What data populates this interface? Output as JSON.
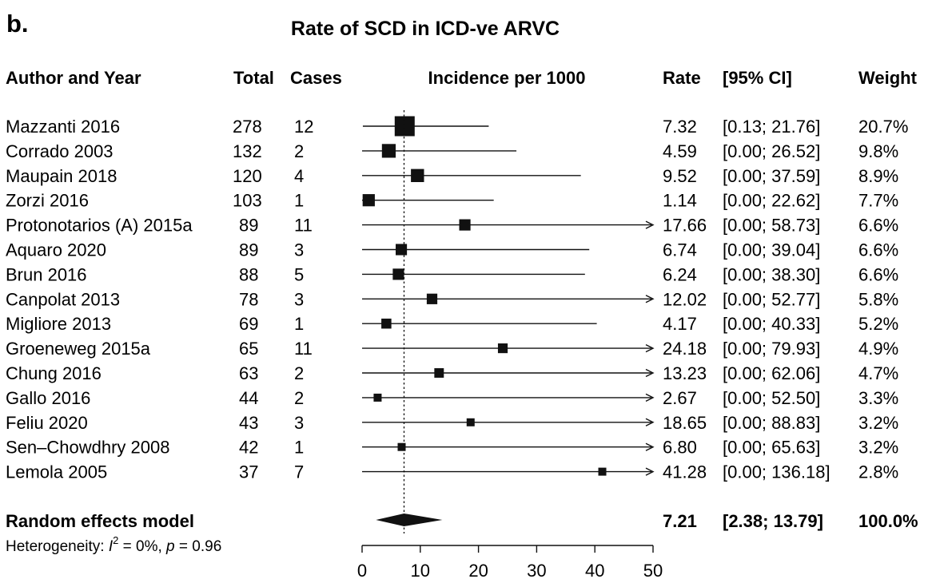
{
  "chart_data": {
    "type": "forest",
    "panel_label": "b.",
    "title": "Rate of SCD in ICD-ve ARVC",
    "columns": {
      "study": "Author and Year",
      "total": "Total",
      "cases": "Cases",
      "plot": "Incidence per 1000",
      "rate": "Rate",
      "ci": "[95% CI]",
      "weight": "Weight"
    },
    "xlim": [
      0,
      50
    ],
    "x_ticks": [
      "0",
      "10",
      "20",
      "30",
      "40",
      "50"
    ],
    "reference_line": 7.21,
    "studies": [
      {
        "study": "Mazzanti 2016",
        "total": "278",
        "cases": "12",
        "rate": 7.32,
        "lower": 0.13,
        "upper": 21.76,
        "rate_text": "7.32",
        "ci_text": "[0.13; 21.76]",
        "weight": "20.7%",
        "weight_pct": 20.7
      },
      {
        "study": "Corrado 2003",
        "total": "132",
        "cases": "2",
        "rate": 4.59,
        "lower": 0.0,
        "upper": 26.52,
        "rate_text": "4.59",
        "ci_text": "[0.00; 26.52]",
        "weight": "9.8%",
        "weight_pct": 9.8
      },
      {
        "study": "Maupain 2018",
        "total": "120",
        "cases": "4",
        "rate": 9.52,
        "lower": 0.0,
        "upper": 37.59,
        "rate_text": "9.52",
        "ci_text": "[0.00; 37.59]",
        "weight": "8.9%",
        "weight_pct": 8.9
      },
      {
        "study": "Zorzi 2016",
        "total": "103",
        "cases": "1",
        "rate": 1.14,
        "lower": 0.0,
        "upper": 22.62,
        "rate_text": "1.14",
        "ci_text": "[0.00; 22.62]",
        "weight": "7.7%",
        "weight_pct": 7.7
      },
      {
        "study": "Protonotarios (A) 2015a",
        "total": "89",
        "cases": "11",
        "rate": 17.66,
        "lower": 0.0,
        "upper": 58.73,
        "rate_text": "17.66",
        "ci_text": "[0.00; 58.73]",
        "weight": "6.6%",
        "weight_pct": 6.6
      },
      {
        "study": "Aquaro 2020",
        "total": "89",
        "cases": "3",
        "rate": 6.74,
        "lower": 0.0,
        "upper": 39.04,
        "rate_text": "6.74",
        "ci_text": "[0.00; 39.04]",
        "weight": "6.6%",
        "weight_pct": 6.6
      },
      {
        "study": "Brun 2016",
        "total": "88",
        "cases": "5",
        "rate": 6.24,
        "lower": 0.0,
        "upper": 38.3,
        "rate_text": "6.24",
        "ci_text": "[0.00; 38.30]",
        "weight": "6.6%",
        "weight_pct": 6.6
      },
      {
        "study": "Canpolat 2013",
        "total": "78",
        "cases": "3",
        "rate": 12.02,
        "lower": 0.0,
        "upper": 52.77,
        "rate_text": "12.02",
        "ci_text": "[0.00; 52.77]",
        "weight": "5.8%",
        "weight_pct": 5.8
      },
      {
        "study": "Migliore 2013",
        "total": "69",
        "cases": "1",
        "rate": 4.17,
        "lower": 0.0,
        "upper": 40.33,
        "rate_text": "4.17",
        "ci_text": "[0.00; 40.33]",
        "weight": "5.2%",
        "weight_pct": 5.2
      },
      {
        "study": "Groeneweg 2015a",
        "total": "65",
        "cases": "11",
        "rate": 24.18,
        "lower": 0.0,
        "upper": 79.93,
        "rate_text": "24.18",
        "ci_text": "[0.00; 79.93]",
        "weight": "4.9%",
        "weight_pct": 4.9
      },
      {
        "study": "Chung 2016",
        "total": "63",
        "cases": "2",
        "rate": 13.23,
        "lower": 0.0,
        "upper": 62.06,
        "rate_text": "13.23",
        "ci_text": "[0.00; 62.06]",
        "weight": "4.7%",
        "weight_pct": 4.7
      },
      {
        "study": "Gallo 2016",
        "total": "44",
        "cases": "2",
        "rate": 2.67,
        "lower": 0.0,
        "upper": 52.5,
        "rate_text": "2.67",
        "ci_text": "[0.00; 52.50]",
        "weight": "3.3%",
        "weight_pct": 3.3
      },
      {
        "study": "Feliu 2020",
        "total": "43",
        "cases": "3",
        "rate": 18.65,
        "lower": 0.0,
        "upper": 88.83,
        "rate_text": "18.65",
        "ci_text": "[0.00; 88.83]",
        "weight": "3.2%",
        "weight_pct": 3.2
      },
      {
        "study": "Sen–Chowdhry 2008",
        "total": "42",
        "cases": "1",
        "rate": 6.8,
        "lower": 0.0,
        "upper": 65.63,
        "rate_text": "6.80",
        "ci_text": "[0.00; 65.63]",
        "weight": "3.2%",
        "weight_pct": 3.2
      },
      {
        "study": "Lemola 2005",
        "total": "37",
        "cases": "7",
        "rate": 41.28,
        "lower": 0.0,
        "upper": 136.18,
        "rate_text": "41.28",
        "ci_text": "[0.00; 136.18]",
        "weight": "2.8%",
        "weight_pct": 2.8
      }
    ],
    "summary": {
      "label": "Random effects model",
      "rate": 7.21,
      "lower": 2.38,
      "upper": 13.79,
      "rate_text": "7.21",
      "ci_text": "[2.38; 13.79]",
      "weight": "100.0%",
      "heterogeneity": {
        "prefix": "Heterogeneity: ",
        "i_symbol": "I",
        "i_sup": "2",
        "i_value": " = 0%, ",
        "p_symbol": "p",
        "p_value": " = 0.96"
      }
    }
  }
}
